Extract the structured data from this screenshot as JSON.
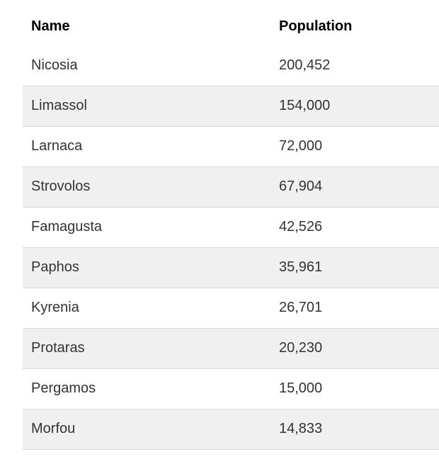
{
  "table": {
    "columns": [
      {
        "label": "Name"
      },
      {
        "label": "Population"
      }
    ],
    "rows": [
      {
        "name": "Nicosia",
        "population": "200,452"
      },
      {
        "name": "Limassol",
        "population": "154,000"
      },
      {
        "name": "Larnaca",
        "population": "72,000"
      },
      {
        "name": "Strovolos",
        "population": "67,904"
      },
      {
        "name": "Famagusta",
        "population": "42,526"
      },
      {
        "name": "Paphos",
        "population": "35,961"
      },
      {
        "name": "Kyrenia",
        "population": "26,701"
      },
      {
        "name": "Protaras",
        "population": "20,230"
      },
      {
        "name": "Pergamos",
        "population": "15,000"
      },
      {
        "name": "Morfou",
        "population": "14,833"
      }
    ],
    "colors": {
      "page_bg": "#ffffff",
      "stripe_bg": "#f0f0f0",
      "stripe_border": "#d9d9d9",
      "header_text": "#000000",
      "row_text": "#333333"
    }
  },
  "chart_data": {
    "type": "table",
    "title": "",
    "columns": [
      "Name",
      "Population"
    ],
    "categories": [
      "Nicosia",
      "Limassol",
      "Larnaca",
      "Strovolos",
      "Famagusta",
      "Paphos",
      "Kyrenia",
      "Protaras",
      "Pergamos",
      "Morfou"
    ],
    "values": [
      200452,
      154000,
      72000,
      67904,
      42526,
      35961,
      26701,
      20230,
      15000,
      14833
    ],
    "layout": {
      "zebra_striping": true,
      "grid": false,
      "header_bold": true
    }
  }
}
